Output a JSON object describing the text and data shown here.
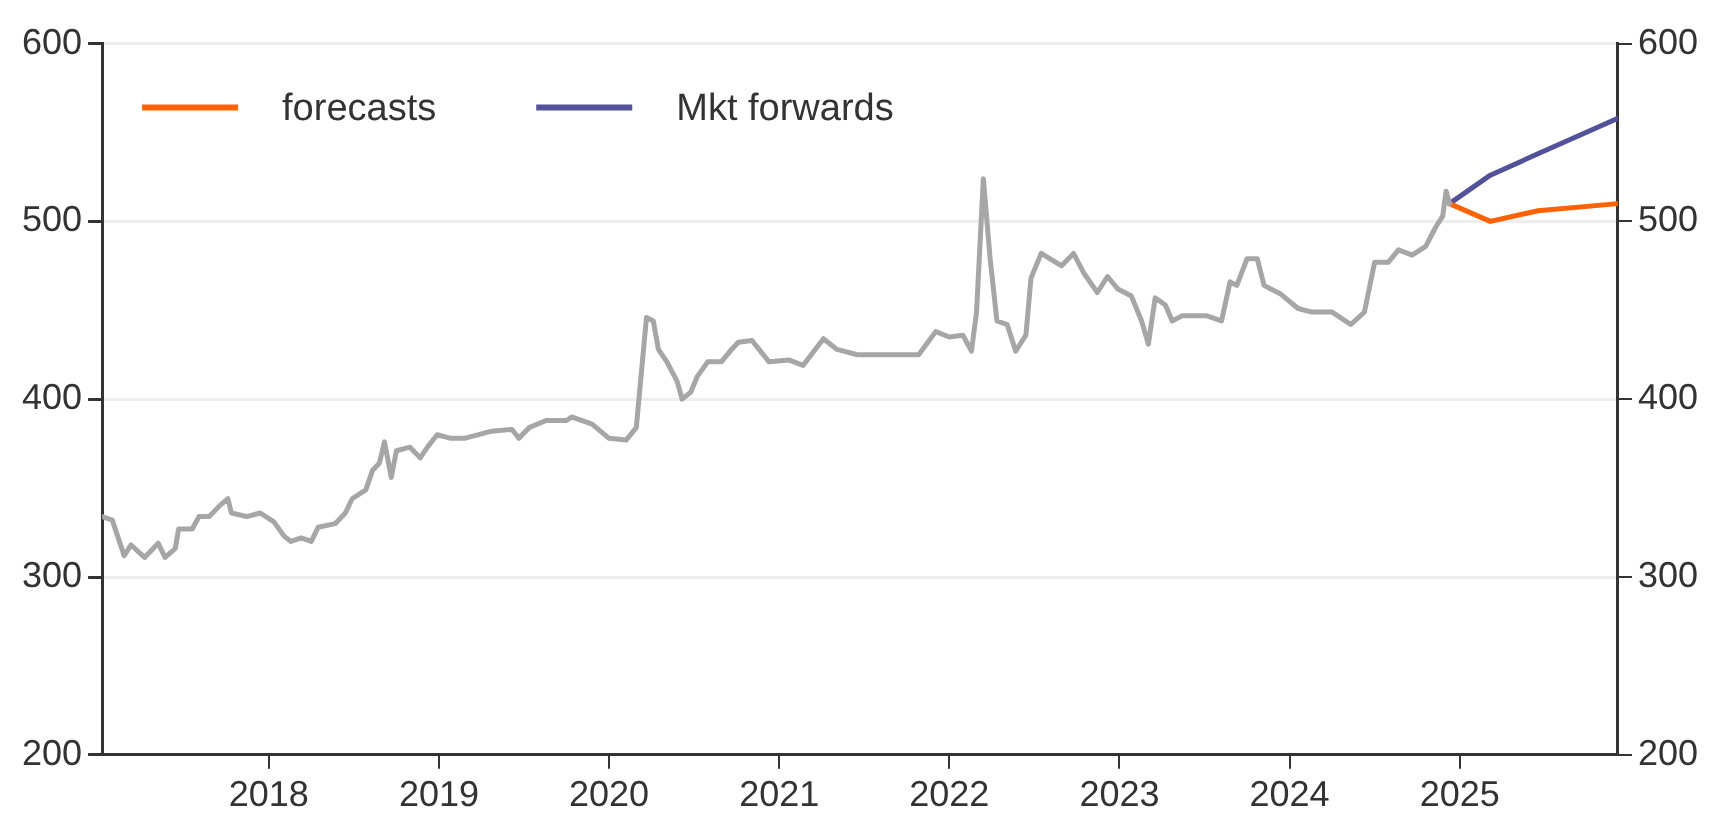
{
  "chart_data": {
    "type": "line",
    "series": [
      {
        "color": "#a6a6a6",
        "x": [
          2017.02,
          2017.08,
          2017.15,
          2017.19,
          2017.27,
          2017.35,
          2017.39,
          2017.45,
          2017.47,
          2017.55,
          2017.59,
          2017.65,
          2017.71,
          2017.76,
          2017.78,
          2017.87,
          2017.95,
          2018.03,
          2018.09,
          2018.13,
          2018.19,
          2018.25,
          2018.29,
          2018.39,
          2018.45,
          2018.49,
          2018.57,
          2018.61,
          2018.65,
          2018.68,
          2018.72,
          2018.75,
          2018.83,
          2018.89,
          2018.94,
          2018.99,
          2019.07,
          2019.15,
          2019.31,
          2019.43,
          2019.47,
          2019.53,
          2019.63,
          2019.75,
          2019.78,
          2019.9,
          2020.0,
          2020.1,
          2020.16,
          2020.22,
          2020.26,
          2020.29,
          2020.34,
          2020.4,
          2020.43,
          2020.48,
          2020.52,
          2020.58,
          2020.66,
          2020.72,
          2020.76,
          2020.84,
          2020.94,
          2021.06,
          2021.14,
          2021.26,
          2021.34,
          2021.46,
          2021.62,
          2021.82,
          2021.92,
          2022.0,
          2022.08,
          2022.13,
          2022.16,
          2022.2,
          2022.24,
          2022.28,
          2022.34,
          2022.39,
          2022.45,
          2022.48,
          2022.54,
          2022.66,
          2022.73,
          2022.79,
          2022.87,
          2022.93,
          2022.99,
          2023.07,
          2023.13,
          2023.17,
          2023.21,
          2023.27,
          2023.31,
          2023.37,
          2023.51,
          2023.6,
          2023.65,
          2023.69,
          2023.75,
          2023.81,
          2023.85,
          2023.95,
          2024.05,
          2024.13,
          2024.25,
          2024.36,
          2024.44,
          2024.5,
          2024.58,
          2024.64,
          2024.72,
          2024.8,
          2024.86,
          2024.9,
          2024.92,
          2024.94
        ],
        "values": [
          334,
          332,
          312,
          318,
          311,
          319,
          311,
          316,
          327,
          327,
          334,
          334,
          340,
          344,
          336,
          334,
          336,
          331,
          323,
          320,
          322,
          320,
          328,
          330,
          336,
          344,
          349,
          360,
          364,
          376,
          356,
          371,
          373,
          367,
          374,
          380,
          378,
          378,
          382,
          383,
          378,
          384,
          388,
          388,
          390,
          386,
          378,
          377,
          384,
          446,
          444,
          428,
          421,
          410,
          400,
          404,
          413,
          421,
          421,
          428,
          432,
          433,
          421,
          422,
          419,
          434,
          428,
          425,
          425,
          425,
          438,
          435,
          436,
          427,
          449,
          524,
          479,
          444,
          442,
          427,
          436,
          468,
          482,
          475,
          482,
          471,
          460,
          469,
          462,
          458,
          444,
          431,
          457,
          453,
          444,
          447,
          447,
          444,
          466,
          464,
          479,
          479,
          464,
          459,
          451,
          449,
          449,
          442,
          449,
          477,
          477,
          484,
          481,
          486,
          497,
          503,
          517,
          510
        ]
      },
      {
        "name": "forecasts",
        "color": "#ff6200",
        "x": [
          2024.94,
          2025.18,
          2025.46,
          2025.93
        ],
        "values": [
          510,
          500,
          506,
          510
        ]
      },
      {
        "name": "Mkt forwards",
        "color": "#525199",
        "x": [
          2024.94,
          2025.18,
          2025.46,
          2025.93
        ],
        "values": [
          510,
          526,
          538,
          558
        ]
      }
    ],
    "xlim": [
      2017.02,
      2025.93
    ],
    "xticks": [
      2018,
      2019,
      2020,
      2021,
      2022,
      2023,
      2024,
      2025
    ],
    "ylim": [
      200,
      600
    ],
    "yticks": [
      200,
      300,
      400,
      500,
      600
    ],
    "y2lim": [
      200,
      600
    ],
    "y2ticks": [
      200,
      300,
      400,
      500,
      600
    ],
    "grid": "y",
    "legend": "top left",
    "marker": "none",
    "line_style": "solid"
  }
}
